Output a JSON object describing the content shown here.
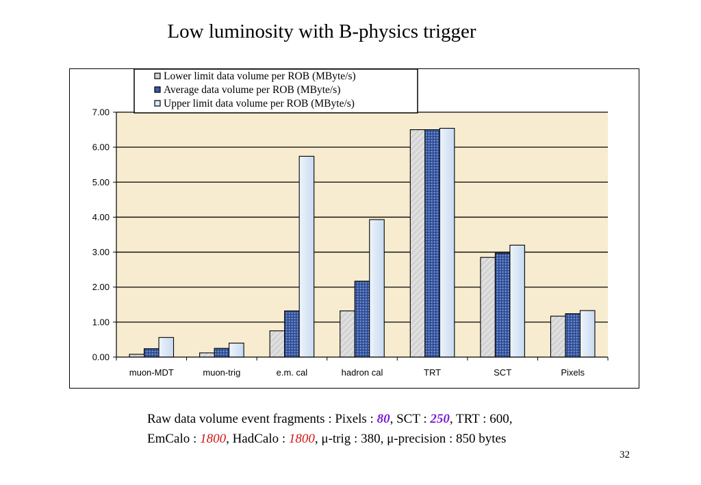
{
  "slide": {
    "title": "Low luminosity with B-physics trigger",
    "page_number": "32"
  },
  "caption": {
    "line1_a": "Raw data volume event fragments : Pixels : ",
    "line1_pixels": "80",
    "line1_b": ", SCT : ",
    "line1_sct": "250",
    "line1_c": ", TRT : 600,",
    "line2_a": "EmCalo : ",
    "line2_em": "1800",
    "line2_b": ", HadCalo : ",
    "line2_had": "1800",
    "line2_c": ", μ-trig : 380, μ-precision : 850 bytes"
  },
  "colors": {
    "plot_background": "#f8ecd0",
    "lower": "#d4d4d4",
    "average": "#3b5ba5",
    "upper": "#dbe8f7",
    "gridline": "#000000",
    "highlight_purple": "#7a1fd6",
    "highlight_red": "#d31515"
  },
  "chart_data": {
    "type": "bar",
    "title": "",
    "xlabel": "",
    "ylabel": "",
    "ylim": [
      0,
      7
    ],
    "yticks": [
      "0.00",
      "1.00",
      "2.00",
      "3.00",
      "4.00",
      "5.00",
      "6.00",
      "7.00"
    ],
    "grid": true,
    "legend_position": "top-center",
    "categories": [
      "muon-MDT",
      "muon-trig",
      "e.m. cal",
      "hadron cal",
      "TRT",
      "SCT",
      "Pixels"
    ],
    "series": [
      {
        "name": "Lower limit data volume per ROB (MByte/s)",
        "values": [
          0.08,
          0.12,
          0.75,
          1.32,
          6.5,
          2.85,
          1.17
        ]
      },
      {
        "name": "Average data volume per ROB (MByte/s)",
        "values": [
          0.24,
          0.25,
          1.32,
          2.17,
          6.5,
          2.97,
          1.24
        ]
      },
      {
        "name": "Upper limit data volume per ROB (MByte/s)",
        "values": [
          0.56,
          0.4,
          5.74,
          3.93,
          6.54,
          3.2,
          1.33
        ]
      }
    ]
  }
}
